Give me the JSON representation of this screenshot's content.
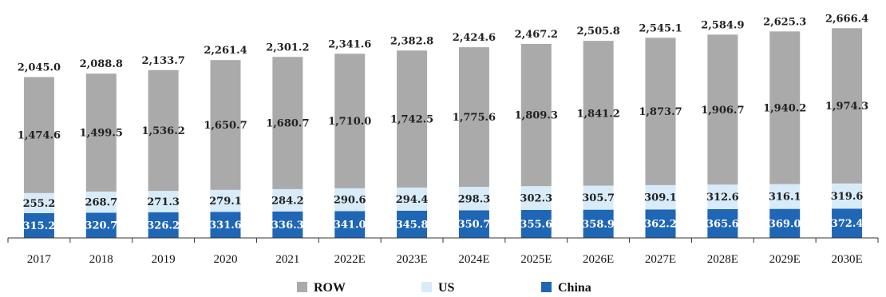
{
  "chart_data": {
    "type": "bar",
    "stacked": true,
    "categories": [
      "2017",
      "2018",
      "2019",
      "2020",
      "2021",
      "2022E",
      "2023E",
      "2024E",
      "2025E",
      "2026E",
      "2027E",
      "2028E",
      "2029E",
      "2030E"
    ],
    "series": [
      {
        "name": "China",
        "color": "#1f66b5",
        "values": [
          315.2,
          320.7,
          326.2,
          331.6,
          336.3,
          341.0,
          345.8,
          350.7,
          355.6,
          358.9,
          362.2,
          365.6,
          369.0,
          372.4
        ],
        "labels": [
          "315.2",
          "320.7",
          "326.2",
          "331.6",
          "336.3",
          "341.0",
          "345.8",
          "350.7",
          "355.6",
          "358.9",
          "362.2",
          "365.6",
          "369.0",
          "372.4"
        ]
      },
      {
        "name": "US",
        "color": "#d8ebf8",
        "values": [
          255.2,
          268.7,
          271.3,
          279.1,
          284.2,
          290.6,
          294.4,
          298.3,
          302.3,
          305.7,
          309.1,
          312.6,
          316.1,
          319.6
        ],
        "labels": [
          "255.2",
          "268.7",
          "271.3",
          "279.1",
          "284.2",
          "290.6",
          "294.4",
          "298.3",
          "302.3",
          "305.7",
          "309.1",
          "312.6",
          "316.1",
          "319.6"
        ]
      },
      {
        "name": "ROW",
        "color": "#aaaaaa",
        "values": [
          1474.6,
          1499.5,
          1536.2,
          1650.7,
          1680.7,
          1710.0,
          1742.5,
          1775.6,
          1809.3,
          1841.2,
          1873.7,
          1906.7,
          1940.2,
          1974.3
        ],
        "labels": [
          "1,474.6",
          "1,499.5",
          "1,536.2",
          "1,650.7",
          "1,680.7",
          "1,710.0",
          "1,742.5",
          "1,775.6",
          "1,809.3",
          "1,841.2",
          "1,873.7",
          "1,906.7",
          "1,940.2",
          "1,974.3"
        ]
      }
    ],
    "totals": [
      2045.0,
      2088.8,
      2133.7,
      2261.4,
      2301.2,
      2341.6,
      2382.8,
      2424.6,
      2467.2,
      2505.8,
      2545.1,
      2584.9,
      2625.3,
      2666.4
    ],
    "total_labels": [
      "2,045.0",
      "2,088.8",
      "2,133.7",
      "2,261.4",
      "2,301.2",
      "2,341.6",
      "2,382.8",
      "2,424.6",
      "2,467.2",
      "2,505.8",
      "2,545.1",
      "2,584.9",
      "2,625.3",
      "2,666.4"
    ],
    "legend": [
      "ROW",
      "US",
      "China"
    ],
    "legend_position": "bottom",
    "title": "",
    "xlabel": "",
    "ylabel": "",
    "ylim": [
      0,
      2700
    ],
    "grid": false
  }
}
